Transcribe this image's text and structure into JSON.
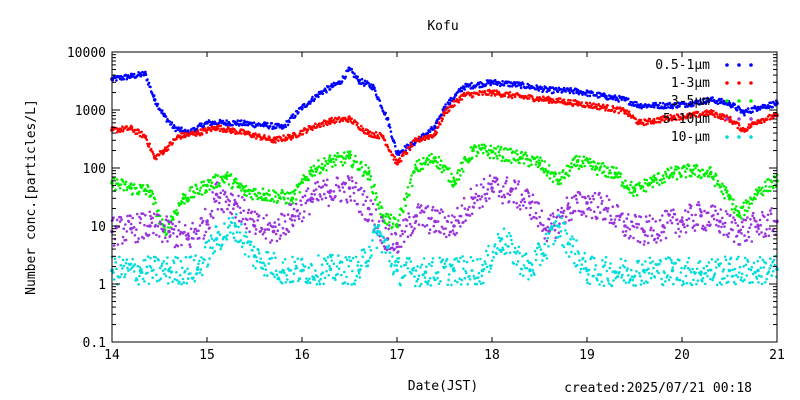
{
  "chart_data": {
    "type": "scatter",
    "title": "Kofu",
    "xlabel": "Date(JST)",
    "ylabel": "Number conc.[particles/L]",
    "x_ticks": [
      "14",
      "15",
      "16",
      "17",
      "18",
      "19",
      "20",
      "21"
    ],
    "xlim": [
      14,
      21
    ],
    "y_scale": "log",
    "ylim": [
      0.1,
      10000
    ],
    "y_ticks": [
      "0.1",
      "1",
      "10",
      "100",
      "1000",
      "10000"
    ],
    "legend_position": "top-right",
    "grid": false,
    "series": [
      {
        "name": "0.5-1μm",
        "color": "#0000ff",
        "x": [
          14.0,
          14.2,
          14.35,
          14.45,
          14.55,
          14.65,
          14.8,
          15.0,
          15.3,
          15.6,
          15.8,
          16.0,
          16.2,
          16.4,
          16.5,
          16.6,
          16.75,
          16.9,
          17.0,
          17.15,
          17.4,
          17.5,
          17.7,
          18.0,
          18.3,
          18.6,
          18.9,
          19.2,
          19.4,
          19.55,
          19.7,
          19.9,
          20.1,
          20.3,
          20.5,
          20.65,
          20.8,
          21.0
        ],
        "y": [
          3400,
          3800,
          4200,
          1500,
          800,
          500,
          400,
          600,
          600,
          550,
          500,
          1100,
          2000,
          3000,
          5000,
          3200,
          2500,
          700,
          180,
          250,
          500,
          1100,
          2500,
          3000,
          2700,
          2200,
          2100,
          1700,
          1500,
          1200,
          1200,
          1200,
          1300,
          1500,
          1300,
          900,
          1100,
          1300
        ]
      },
      {
        "name": "1-3μm",
        "color": "#ff0000",
        "x": [
          14.0,
          14.2,
          14.35,
          14.45,
          14.55,
          14.7,
          14.9,
          15.1,
          15.4,
          15.7,
          15.9,
          16.1,
          16.3,
          16.5,
          16.7,
          16.85,
          17.0,
          17.2,
          17.4,
          17.5,
          17.7,
          18.0,
          18.3,
          18.6,
          18.9,
          19.2,
          19.4,
          19.55,
          19.7,
          19.9,
          20.1,
          20.3,
          20.5,
          20.65,
          20.8,
          21.0
        ],
        "y": [
          450,
          480,
          350,
          150,
          200,
          350,
          400,
          500,
          400,
          300,
          350,
          500,
          650,
          700,
          400,
          350,
          120,
          300,
          380,
          900,
          1800,
          2000,
          1700,
          1500,
          1300,
          1100,
          950,
          600,
          650,
          750,
          800,
          900,
          700,
          450,
          650,
          800
        ]
      },
      {
        "name": "3-5μm",
        "color": "#00ee00",
        "x": [
          14.0,
          14.2,
          14.4,
          14.55,
          14.75,
          15.0,
          15.2,
          15.4,
          15.6,
          15.9,
          16.1,
          16.3,
          16.5,
          16.7,
          16.85,
          17.0,
          17.2,
          17.4,
          17.6,
          17.8,
          18.0,
          18.3,
          18.5,
          18.7,
          18.9,
          19.1,
          19.3,
          19.5,
          19.7,
          19.9,
          20.1,
          20.3,
          20.5,
          20.6,
          20.8,
          21.0
        ],
        "y": [
          55,
          45,
          40,
          8,
          30,
          50,
          70,
          40,
          35,
          30,
          90,
          130,
          150,
          80,
          15,
          10,
          100,
          150,
          60,
          200,
          190,
          150,
          120,
          60,
          130,
          100,
          80,
          40,
          60,
          80,
          90,
          80,
          30,
          15,
          40,
          60
        ]
      },
      {
        "name": "5-10μm",
        "color": "#9933dd",
        "x": [
          14.0,
          14.2,
          14.4,
          14.6,
          14.8,
          15.0,
          15.1,
          15.3,
          15.5,
          15.7,
          15.9,
          16.1,
          16.3,
          16.5,
          16.7,
          16.9,
          17.0,
          17.2,
          17.4,
          17.6,
          17.8,
          18.0,
          18.2,
          18.4,
          18.6,
          18.8,
          19.0,
          19.2,
          19.4,
          19.6,
          19.8,
          20.0,
          20.2,
          20.4,
          20.6,
          20.8,
          21.0
        ],
        "y": [
          8,
          9,
          10,
          8,
          6,
          12,
          35,
          25,
          10,
          8,
          15,
          30,
          40,
          45,
          20,
          6,
          5,
          15,
          12,
          10,
          30,
          45,
          40,
          25,
          8,
          20,
          25,
          20,
          10,
          8,
          10,
          12,
          15,
          12,
          8,
          10,
          12
        ]
      },
      {
        "name": "10-μm",
        "color": "#00dddd",
        "x": [
          14.0,
          14.3,
          14.6,
          14.9,
          15.1,
          15.3,
          15.5,
          15.8,
          16.0,
          16.3,
          16.6,
          16.8,
          17.0,
          17.3,
          17.6,
          17.9,
          18.1,
          18.4,
          18.7,
          19.0,
          19.3,
          19.6,
          19.9,
          20.2,
          20.5,
          20.8,
          21.0
        ],
        "y": [
          1.7,
          1.7,
          1.7,
          1.8,
          6,
          10,
          3,
          1.7,
          1.7,
          1.8,
          1.7,
          8,
          1.7,
          1.6,
          1.7,
          1.7,
          6,
          1.7,
          10,
          1.7,
          1.6,
          1.7,
          1.7,
          1.6,
          1.7,
          1.7,
          1.8
        ]
      }
    ]
  },
  "footer": {
    "created": "created:2025/07/21 00:18"
  }
}
